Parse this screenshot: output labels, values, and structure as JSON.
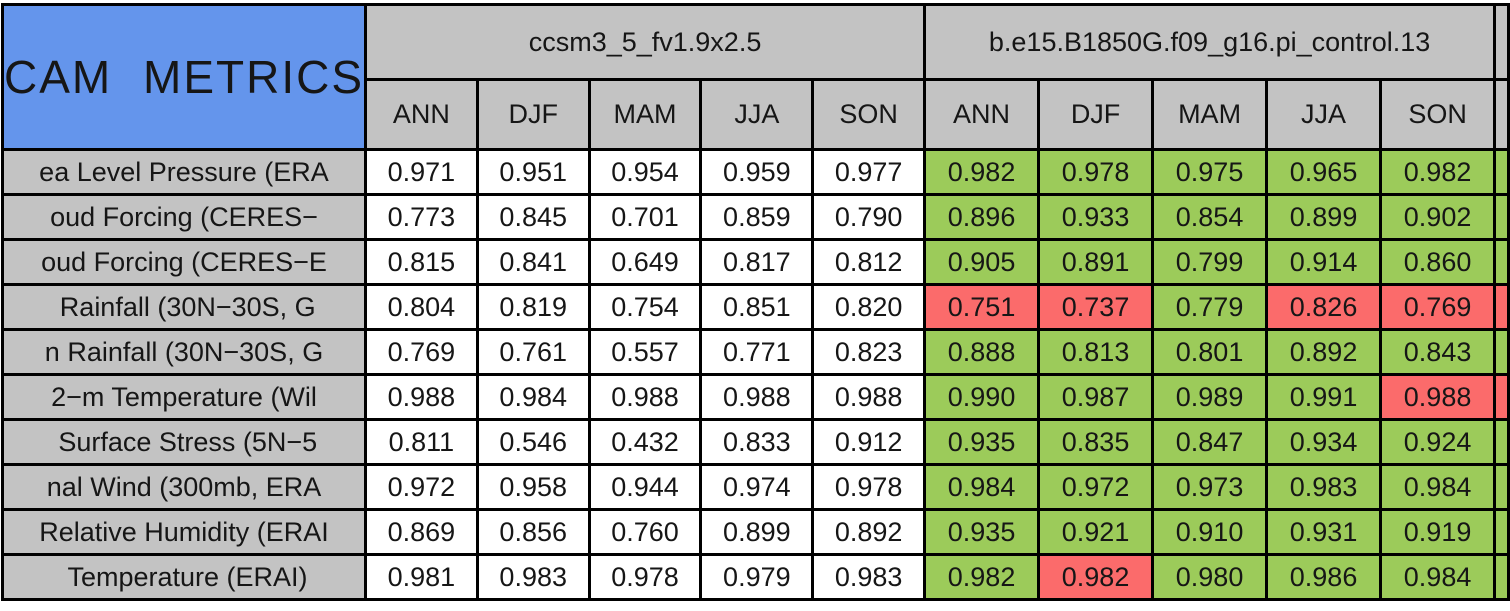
{
  "chart_data": {
    "type": "table",
    "title": "CAM METRICS",
    "column_groups": [
      "ccsm3_5_fv1.9x2.5",
      "b.e15.B1850G.f09_g16.pi_control.13"
    ],
    "seasons": [
      "ANN",
      "DJF",
      "MAM",
      "JJA",
      "SON"
    ],
    "legend_note": "model2 cells shaded green or red; model1 cells white",
    "rows": [
      {
        "label": "ea Level Pressure (ERA",
        "model1": [
          "0.971",
          "0.951",
          "0.954",
          "0.959",
          "0.977"
        ],
        "model2": [
          "0.982",
          "0.978",
          "0.975",
          "0.965",
          "0.982"
        ],
        "model2_status": [
          "green",
          "green",
          "green",
          "green",
          "green"
        ],
        "edge_status": "green"
      },
      {
        "label": "oud Forcing (CERES−",
        "model1": [
          "0.773",
          "0.845",
          "0.701",
          "0.859",
          "0.790"
        ],
        "model2": [
          "0.896",
          "0.933",
          "0.854",
          "0.899",
          "0.902"
        ],
        "model2_status": [
          "green",
          "green",
          "green",
          "green",
          "green"
        ],
        "edge_status": "green"
      },
      {
        "label": "oud Forcing (CERES−E",
        "model1": [
          "0.815",
          "0.841",
          "0.649",
          "0.817",
          "0.812"
        ],
        "model2": [
          "0.905",
          "0.891",
          "0.799",
          "0.914",
          "0.860"
        ],
        "model2_status": [
          "green",
          "green",
          "green",
          "green",
          "green"
        ],
        "edge_status": "green"
      },
      {
        "label": " Rainfall (30N−30S, G",
        "model1": [
          "0.804",
          "0.819",
          "0.754",
          "0.851",
          "0.820"
        ],
        "model2": [
          "0.751",
          "0.737",
          "0.779",
          "0.826",
          "0.769"
        ],
        "model2_status": [
          "red",
          "red",
          "green",
          "red",
          "red"
        ],
        "edge_status": "red"
      },
      {
        "label": "n Rainfall (30N−30S, G",
        "model1": [
          "0.769",
          "0.761",
          "0.557",
          "0.771",
          "0.823"
        ],
        "model2": [
          "0.888",
          "0.813",
          "0.801",
          "0.892",
          "0.843"
        ],
        "model2_status": [
          "green",
          "green",
          "green",
          "green",
          "green"
        ],
        "edge_status": "green"
      },
      {
        "label": "2−m Temperature (Wil",
        "model1": [
          "0.988",
          "0.984",
          "0.988",
          "0.988",
          "0.988"
        ],
        "model2": [
          "0.990",
          "0.987",
          "0.989",
          "0.991",
          "0.988"
        ],
        "model2_status": [
          "green",
          "green",
          "green",
          "green",
          "red"
        ],
        "edge_status": "red"
      },
      {
        "label": " Surface Stress (5N−5",
        "model1": [
          "0.811",
          "0.546",
          "0.432",
          "0.833",
          "0.912"
        ],
        "model2": [
          "0.935",
          "0.835",
          "0.847",
          "0.934",
          "0.924"
        ],
        "model2_status": [
          "green",
          "green",
          "green",
          "green",
          "green"
        ],
        "edge_status": "green"
      },
      {
        "label": "nal Wind (300mb, ERA",
        "model1": [
          "0.972",
          "0.958",
          "0.944",
          "0.974",
          "0.978"
        ],
        "model2": [
          "0.984",
          "0.972",
          "0.973",
          "0.983",
          "0.984"
        ],
        "model2_status": [
          "green",
          "green",
          "green",
          "green",
          "green"
        ],
        "edge_status": "green"
      },
      {
        "label": "Relative Humidity (ERAI",
        "model1": [
          "0.869",
          "0.856",
          "0.760",
          "0.899",
          "0.892"
        ],
        "model2": [
          "0.935",
          "0.921",
          "0.910",
          "0.931",
          "0.919"
        ],
        "model2_status": [
          "green",
          "green",
          "green",
          "green",
          "green"
        ],
        "edge_status": "green"
      },
      {
        "label": " Temperature (ERAI)",
        "model1": [
          "0.981",
          "0.983",
          "0.978",
          "0.979",
          "0.983"
        ],
        "model2": [
          "0.982",
          "0.982",
          "0.980",
          "0.986",
          "0.984"
        ],
        "model2_status": [
          "green",
          "red",
          "green",
          "green",
          "green"
        ],
        "edge_status": "green"
      }
    ]
  },
  "colors": {
    "title_bg": "#6495EC",
    "header_bg": "#C3C3C3",
    "model1_cell_bg": "#FFFFFF",
    "green": "#9CCB5A",
    "red": "#FB6B6B",
    "border": "#000000",
    "text": "#161616"
  }
}
